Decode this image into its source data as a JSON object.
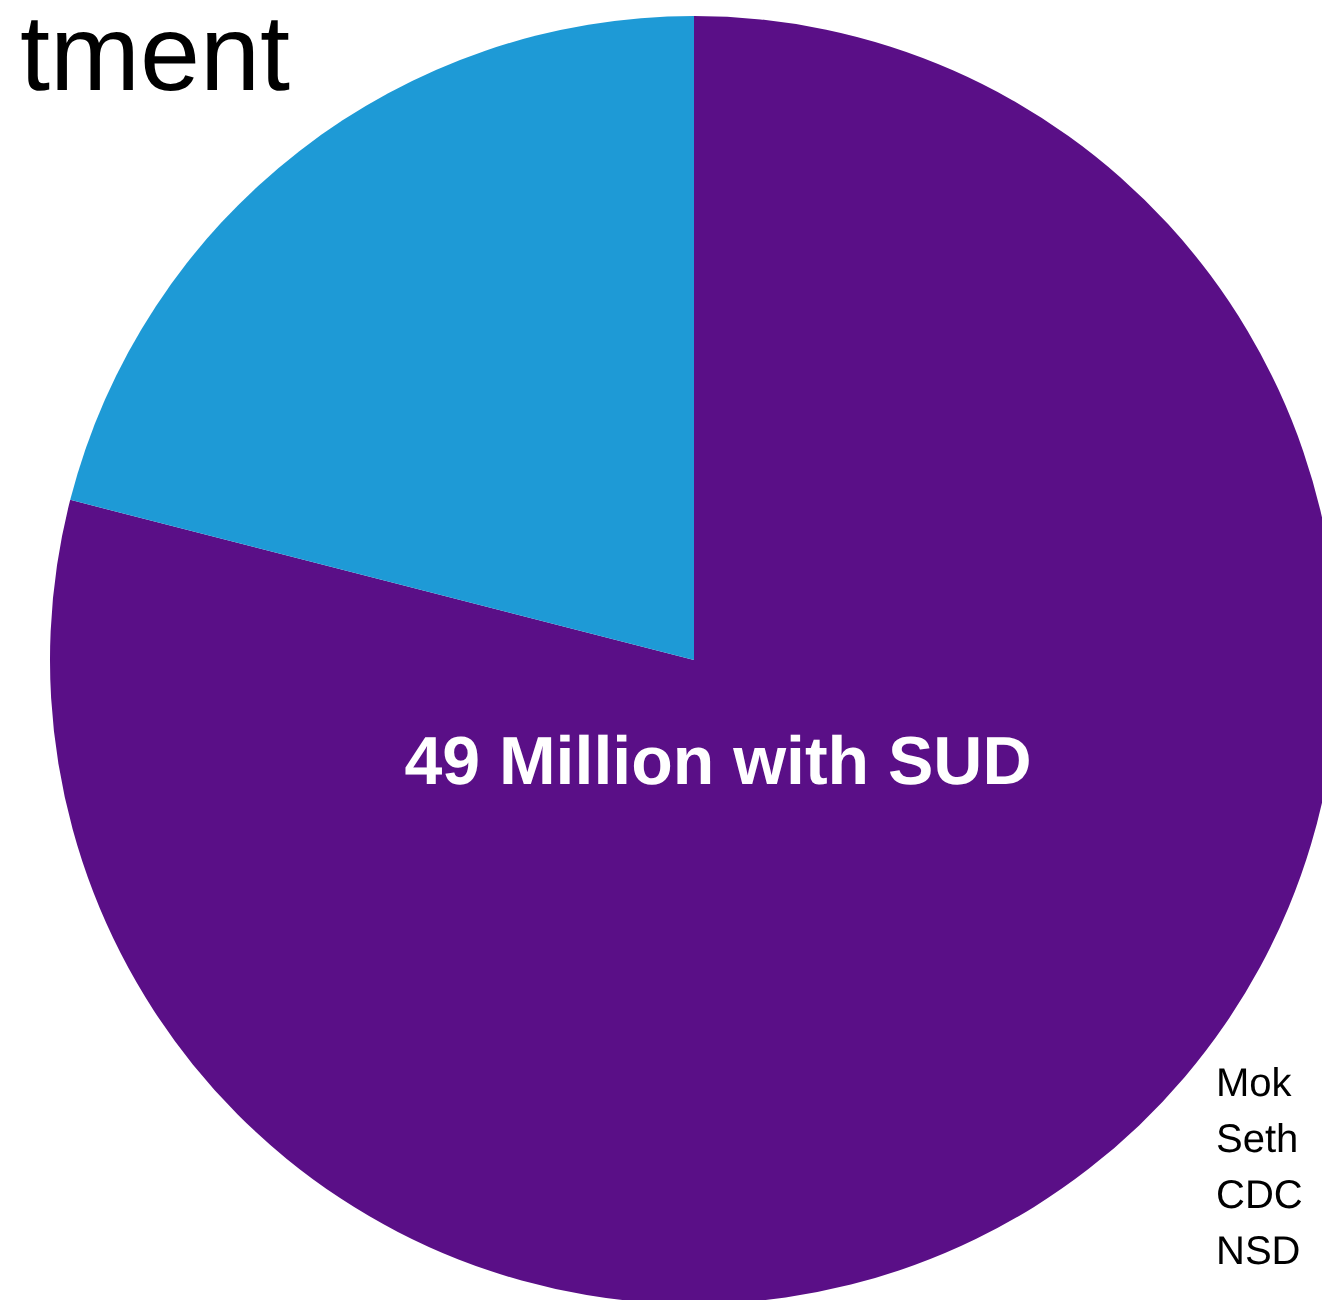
{
  "chart_data": {
    "type": "pie",
    "title": "tment",
    "categories": [
      "49 Million with SUD",
      null
    ],
    "values": [
      79,
      21
    ],
    "colors": [
      "#5a0f87",
      "#1e9ad6"
    ],
    "annotations": [
      "Mok",
      "Seth",
      "CDC",
      "NSD"
    ]
  }
}
